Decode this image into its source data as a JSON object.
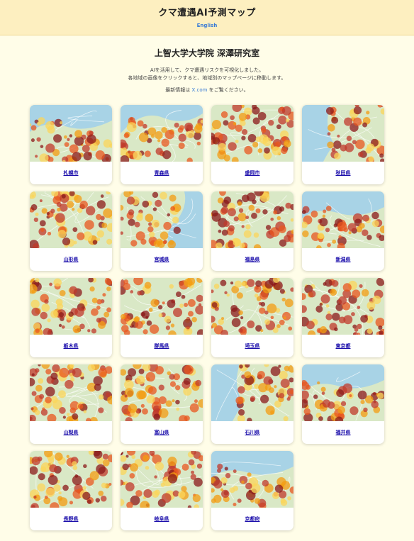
{
  "header": {
    "title": "クマ遭遇AI予測マップ",
    "lang_link": "English"
  },
  "lab": "上智大学大学院 深澤研究室",
  "description": {
    "line1": "AIを活用して、クマ遭遇リスクを可視化しました。",
    "line2": "各地域の画像をクリックすると、地域別のマップページに移動します。",
    "info_prefix": "最新情報は ",
    "info_link": "X.com",
    "info_suffix": " をご覧ください。"
  },
  "colors": {
    "header_bg": "#fdefc0",
    "page_bg": "#fffde8",
    "link": "#1a0dab",
    "accent": "#3a7bd5",
    "sea": "#a8d3e6",
    "land": "#d9e8c6",
    "risk_high": "#8b1a1a",
    "risk_mid": "#e8571f",
    "risk_low": "#fbd55a"
  },
  "regions": [
    {
      "name": "札幌市",
      "map": "sea-top"
    },
    {
      "name": "青森県",
      "map": "bay"
    },
    {
      "name": "盛岡市",
      "map": "inland"
    },
    {
      "name": "秋田県",
      "map": "sea-left"
    },
    {
      "name": "山形県",
      "map": "inland"
    },
    {
      "name": "宮城県",
      "map": "sea-right"
    },
    {
      "name": "福島県",
      "map": "inland"
    },
    {
      "name": "新潟県",
      "map": "sea-top"
    },
    {
      "name": "栃木県",
      "map": "inland"
    },
    {
      "name": "群馬県",
      "map": "inland"
    },
    {
      "name": "埼玉県",
      "map": "inland"
    },
    {
      "name": "東京都",
      "map": "inland"
    },
    {
      "name": "山梨県",
      "map": "inland"
    },
    {
      "name": "富山県",
      "map": "inland"
    },
    {
      "name": "石川県",
      "map": "sea-left"
    },
    {
      "name": "福井県",
      "map": "sea-top"
    },
    {
      "name": "長野県",
      "map": "inland"
    },
    {
      "name": "岐阜県",
      "map": "inland"
    },
    {
      "name": "京都府",
      "map": "sea-top"
    }
  ]
}
